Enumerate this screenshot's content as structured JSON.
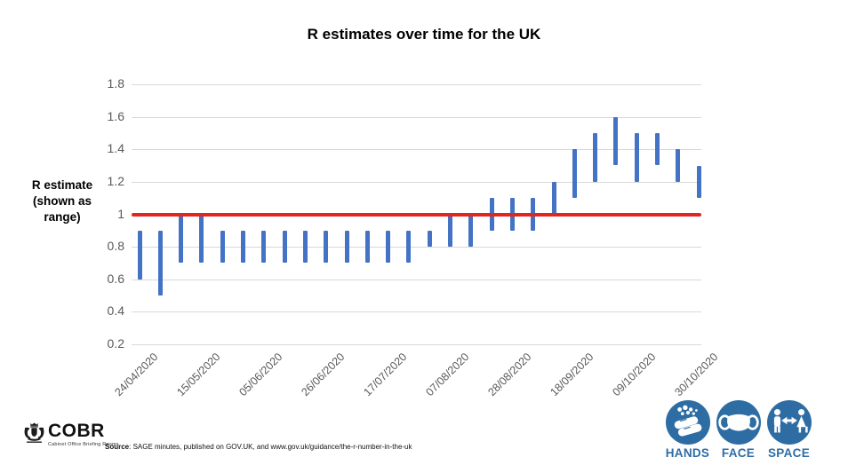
{
  "title": "R estimates over time for the UK",
  "chart_data": {
    "type": "bar",
    "subtype": "vertical-range-bars",
    "title": "R estimates over time for the UK",
    "ylabel": "R estimate (shown as range)",
    "ylabel_lines": [
      "R estimate",
      "(shown as",
      "range)"
    ],
    "ylim": [
      0.2,
      1.8
    ],
    "y_ticks": [
      1.8,
      1.6,
      1.4,
      1.2,
      1,
      0.8,
      0.6,
      0.4,
      0.2
    ],
    "grid": "horizontal-only",
    "x_tick_every": 3,
    "x_tick_labels": [
      "24/04/2020",
      "15/05/2020",
      "05/06/2020",
      "26/06/2020",
      "17/07/2020",
      "07/08/2020",
      "28/08/2020",
      "18/09/2020",
      "09/10/2020",
      "30/10/2020"
    ],
    "reference_line": {
      "value": 1,
      "color": "#e32521"
    },
    "bar_color": "#4472c4",
    "series": [
      {
        "name": "R estimate range",
        "data": [
          {
            "date": "24/04/2020",
            "low": 0.6,
            "high": 0.9
          },
          {
            "date": "01/05/2020",
            "low": 0.5,
            "high": 0.9
          },
          {
            "date": "08/05/2020",
            "low": 0.7,
            "high": 1.0
          },
          {
            "date": "15/05/2020",
            "low": 0.7,
            "high": 1.0
          },
          {
            "date": "22/05/2020",
            "low": 0.7,
            "high": 0.9
          },
          {
            "date": "29/05/2020",
            "low": 0.7,
            "high": 0.9
          },
          {
            "date": "05/06/2020",
            "low": 0.7,
            "high": 0.9
          },
          {
            "date": "12/06/2020",
            "low": 0.7,
            "high": 0.9
          },
          {
            "date": "19/06/2020",
            "low": 0.7,
            "high": 0.9
          },
          {
            "date": "26/06/2020",
            "low": 0.7,
            "high": 0.9
          },
          {
            "date": "03/07/2020",
            "low": 0.7,
            "high": 0.9
          },
          {
            "date": "10/07/2020",
            "low": 0.7,
            "high": 0.9
          },
          {
            "date": "17/07/2020",
            "low": 0.7,
            "high": 0.9
          },
          {
            "date": "24/07/2020",
            "low": 0.7,
            "high": 0.9
          },
          {
            "date": "31/07/2020",
            "low": 0.8,
            "high": 0.9
          },
          {
            "date": "07/08/2020",
            "low": 0.8,
            "high": 1.0
          },
          {
            "date": "14/08/2020",
            "low": 0.8,
            "high": 1.0
          },
          {
            "date": "21/08/2020",
            "low": 0.9,
            "high": 1.1
          },
          {
            "date": "28/08/2020",
            "low": 0.9,
            "high": 1.1
          },
          {
            "date": "04/09/2020",
            "low": 0.9,
            "high": 1.1
          },
          {
            "date": "11/09/2020",
            "low": 1.0,
            "high": 1.2
          },
          {
            "date": "18/09/2020",
            "low": 1.1,
            "high": 1.4
          },
          {
            "date": "25/09/2020",
            "low": 1.2,
            "high": 1.5
          },
          {
            "date": "02/10/2020",
            "low": 1.3,
            "high": 1.6
          },
          {
            "date": "09/10/2020",
            "low": 1.2,
            "high": 1.5
          },
          {
            "date": "16/10/2020",
            "low": 1.3,
            "high": 1.5
          },
          {
            "date": "23/10/2020",
            "low": 1.2,
            "high": 1.4
          },
          {
            "date": "30/10/2020",
            "low": 1.1,
            "high": 1.3
          }
        ]
      }
    ]
  },
  "footer": {
    "logo": {
      "name": "COBR",
      "subtitle": "Cabinet Office Briefing Rooms",
      "crest_icon": "royal-crest-icon"
    },
    "source_label": "Source",
    "source_rest": ": SAGE minutes, published on GOV.UK, and www.gov.uk/guidance/the-r-number-in-the-uk",
    "campaign_icon_color": "#2e6da4",
    "campaign_icons": [
      {
        "label": "HANDS",
        "icon": "hands-washing-icon"
      },
      {
        "label": "FACE",
        "icon": "face-mask-icon"
      },
      {
        "label": "SPACE",
        "icon": "social-distance-icon"
      }
    ]
  }
}
